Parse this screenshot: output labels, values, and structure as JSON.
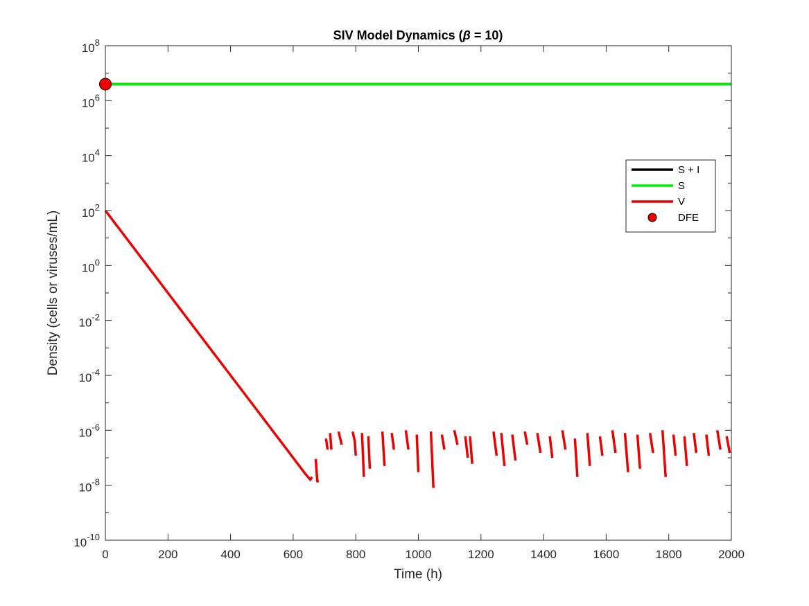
{
  "chart_data": {
    "type": "line",
    "title_main": "SIV Model Dynamics (",
    "title_symbol": "β",
    "title_rest": " = 10)",
    "xlabel": "Time (h)",
    "ylabel": "Density (cells or viruses/mL)",
    "xlim": [
      0,
      2000
    ],
    "ylim_log10": [
      -10,
      8
    ],
    "y_scale": "log",
    "x_ticks": [
      0,
      200,
      400,
      600,
      800,
      1000,
      1200,
      1400,
      1600,
      1800,
      2000
    ],
    "x_tick_labels": [
      "0",
      "200",
      "400",
      "600",
      "800",
      "1000",
      "1200",
      "1400",
      "1600",
      "1800",
      "2000"
    ],
    "y_tick_exponents": [
      -10,
      -8,
      -6,
      -4,
      -2,
      0,
      2,
      4,
      6,
      8
    ],
    "y_tick_base": "10",
    "y_tick_labels": [
      "-10",
      "-8",
      "-6",
      "-4",
      "-2",
      "0",
      "2",
      "4",
      "6",
      "8"
    ],
    "legend_position": "right",
    "legend": [
      {
        "label": "S + I",
        "type": "line",
        "color": "#000000"
      },
      {
        "label": "S",
        "type": "line",
        "color": "#00ee00"
      },
      {
        "label": "V",
        "type": "line",
        "color": "#ee0000"
      },
      {
        "label": "DFE",
        "type": "marker",
        "color": "#ee0000"
      }
    ],
    "series": [
      {
        "name": "S + I",
        "color": "#000000",
        "segments": [
          [
            [
              0,
              4000000
            ],
            [
              2000,
              4000000
            ]
          ]
        ]
      },
      {
        "name": "S",
        "color": "#00ee00",
        "segments": [
          [
            [
              0,
              4000000
            ],
            [
              2000,
              4000000
            ]
          ]
        ]
      },
      {
        "name": "V",
        "color": "#ee0000",
        "segments": [
          [
            [
              0,
              100
            ],
            [
              100,
              3.16
            ],
            [
              200,
              0.1
            ],
            [
              300,
              0.00316
            ],
            [
              400,
              0.0001
            ],
            [
              500,
              3.16e-06
            ],
            [
              600,
              1e-07
            ],
            [
              620,
              5e-08
            ],
            [
              640,
              2.5e-08
            ],
            [
              655,
              1.6e-08
            ],
            [
              660,
              2e-08
            ]
          ],
          [
            [
              672,
              9e-08
            ],
            [
              677,
              1.4e-08
            ],
            [
              682,
              1.4e-08
            ]
          ]
        ]
      },
      {
        "name": "V-tail",
        "color": "#ee0000",
        "segments": [
          [
            [
              705,
              5e-07
            ],
            [
              710,
              2e-07
            ]
          ],
          [
            [
              718,
              8e-07
            ],
            [
              722,
              2e-07
            ]
          ],
          [
            [
              745,
              9e-07
            ],
            [
              755,
              3e-07
            ]
          ],
          [
            [
              790,
              9e-07
            ],
            [
              797,
              4e-07
            ],
            [
              800,
              1.2e-07
            ]
          ],
          [
            [
              820,
              8e-07
            ],
            [
              826,
              2e-08
            ]
          ],
          [
            [
              840,
              6e-07
            ],
            [
              845,
              4e-08
            ]
          ],
          [
            [
              885,
              9e-07
            ],
            [
              892,
              5e-08
            ]
          ],
          [
            [
              915,
              8e-07
            ],
            [
              922,
              2e-07
            ]
          ],
          [
            [
              960,
              1e-06
            ],
            [
              968,
              2e-07
            ]
          ],
          [
            [
              995,
              7e-07
            ],
            [
              1000,
              3e-08
            ]
          ],
          [
            [
              1040,
              9e-07
            ],
            [
              1048,
              8e-09
            ]
          ],
          [
            [
              1075,
              7e-07
            ],
            [
              1083,
              2e-07
            ]
          ],
          [
            [
              1115,
              1e-06
            ],
            [
              1125,
              3e-07
            ]
          ],
          [
            [
              1150,
              6e-07
            ],
            [
              1158,
              1e-07
            ]
          ],
          [
            [
              1165,
              6e-07
            ],
            [
              1172,
              6e-08
            ]
          ],
          [
            [
              1240,
              9e-07
            ],
            [
              1250,
              1.2e-07
            ]
          ],
          [
            [
              1265,
              8e-07
            ],
            [
              1275,
              5e-08
            ]
          ],
          [
            [
              1300,
              7e-07
            ],
            [
              1310,
              8e-08
            ]
          ],
          [
            [
              1340,
              9e-07
            ],
            [
              1348,
              3e-07
            ]
          ],
          [
            [
              1380,
              8e-07
            ],
            [
              1390,
              1.5e-07
            ]
          ],
          [
            [
              1420,
              6e-07
            ],
            [
              1428,
              1e-07
            ]
          ],
          [
            [
              1460,
              1e-06
            ],
            [
              1470,
              2e-07
            ]
          ],
          [
            [
              1500,
              5e-07
            ],
            [
              1508,
              2e-08
            ]
          ],
          [
            [
              1540,
              8e-07
            ],
            [
              1548,
              5e-08
            ]
          ],
          [
            [
              1580,
              6e-07
            ],
            [
              1588,
              1.2e-07
            ]
          ],
          [
            [
              1620,
              1e-06
            ],
            [
              1630,
              1.5e-07
            ]
          ],
          [
            [
              1660,
              8e-07
            ],
            [
              1670,
              3e-08
            ]
          ],
          [
            [
              1700,
              7e-07
            ],
            [
              1708,
              4e-08
            ]
          ],
          [
            [
              1740,
              8e-07
            ],
            [
              1750,
              1.5e-07
            ]
          ],
          [
            [
              1780,
              1e-06
            ],
            [
              1790,
              2e-08
            ]
          ],
          [
            [
              1815,
              7e-07
            ],
            [
              1822,
              1.2e-07
            ]
          ],
          [
            [
              1850,
              6e-07
            ],
            [
              1858,
              5e-08
            ]
          ],
          [
            [
              1880,
              8e-07
            ],
            [
              1888,
              1.5e-07
            ]
          ],
          [
            [
              1920,
              7e-07
            ],
            [
              1928,
              1.2e-07
            ]
          ],
          [
            [
              1955,
              1e-06
            ],
            [
              1965,
              2e-07
            ]
          ],
          [
            [
              1985,
              6e-07
            ],
            [
              1995,
              1.5e-07
            ]
          ]
        ]
      }
    ],
    "markers": [
      {
        "name": "DFE",
        "x": 0,
        "y": 4000000,
        "color": "#ee0000"
      }
    ]
  }
}
